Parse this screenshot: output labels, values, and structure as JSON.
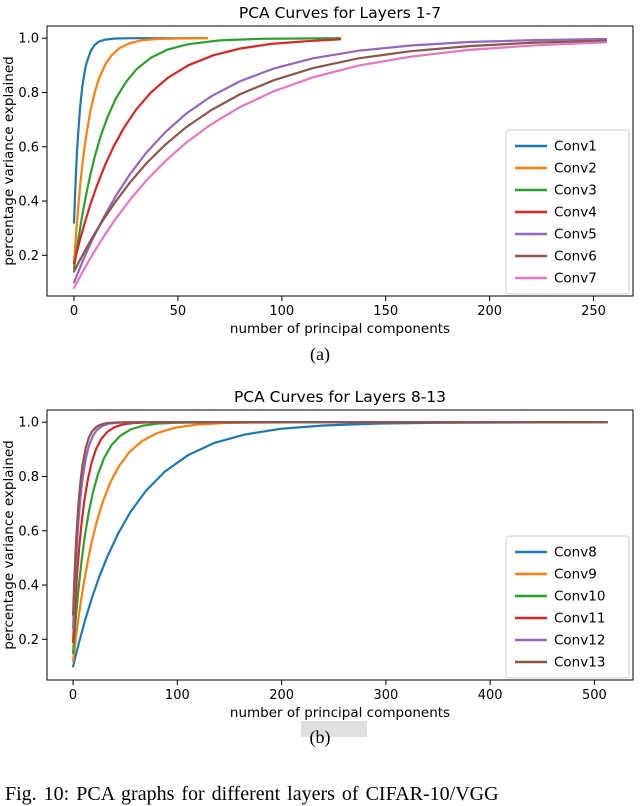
{
  "page": {
    "caption_a": "(a)",
    "caption_b": "(b)",
    "figure_caption": "Fig. 10: PCA graphs for different layers of CIFAR-10/VGG"
  },
  "chart_data": [
    {
      "type": "line",
      "title": "PCA Curves for Layers 1-7",
      "xlabel": "number of principal components",
      "ylabel": "percentage variance explained",
      "xlim": [
        -13,
        269
      ],
      "ylim": [
        0.05,
        1.045
      ],
      "x_ticks": [
        0,
        50,
        100,
        150,
        200,
        250
      ],
      "y_ticks": [
        0.2,
        0.4,
        0.6,
        0.8,
        1.0
      ],
      "grid": false,
      "legend_position": "center right",
      "series": [
        {
          "name": "Conv1",
          "color": "#1f77b4",
          "points": [
            [
              0,
              0.32
            ],
            [
              0.5,
              0.424
            ],
            [
              1,
              0.513
            ],
            [
              1.5,
              0.588
            ],
            [
              2,
              0.651
            ],
            [
              3,
              0.75
            ],
            [
              4,
              0.821
            ],
            [
              5,
              0.872
            ],
            [
              6,
              0.908
            ],
            [
              8,
              0.952
            ],
            [
              10,
              0.976
            ],
            [
              12,
              0.988
            ],
            [
              15,
              0.995
            ],
            [
              20,
              0.999
            ],
            [
              30,
              1.0
            ],
            [
              45,
              1.0
            ],
            [
              64,
              1.0
            ]
          ]
        },
        {
          "name": "Conv2",
          "color": "#ff7f0e",
          "points": [
            [
              0,
              0.17
            ],
            [
              1,
              0.28
            ],
            [
              2,
              0.376
            ],
            [
              3,
              0.459
            ],
            [
              4,
              0.531
            ],
            [
              5,
              0.594
            ],
            [
              6,
              0.648
            ],
            [
              8,
              0.735
            ],
            [
              10,
              0.801
            ],
            [
              12,
              0.851
            ],
            [
              15,
              0.903
            ],
            [
              18,
              0.936
            ],
            [
              22,
              0.964
            ],
            [
              27,
              0.982
            ],
            [
              33,
              0.993
            ],
            [
              40,
              0.997
            ],
            [
              50,
              0.999
            ],
            [
              64,
              1.0
            ]
          ]
        },
        {
          "name": "Conv3",
          "color": "#2ca02c",
          "points": [
            [
              0,
              0.15
            ],
            [
              1,
              0.205
            ],
            [
              2,
              0.256
            ],
            [
              4,
              0.349
            ],
            [
              6,
              0.43
            ],
            [
              8,
              0.501
            ],
            [
              10,
              0.564
            ],
            [
              13,
              0.643
            ],
            [
              16,
              0.707
            ],
            [
              20,
              0.776
            ],
            [
              25,
              0.839
            ],
            [
              30,
              0.885
            ],
            [
              37,
              0.928
            ],
            [
              45,
              0.958
            ],
            [
              55,
              0.978
            ],
            [
              70,
              0.992
            ],
            [
              90,
              0.998
            ],
            [
              110,
              0.999
            ],
            [
              128,
              1.0
            ]
          ]
        },
        {
          "name": "Conv4",
          "color": "#d62728",
          "points": [
            [
              0,
              0.17
            ],
            [
              1,
              0.201
            ],
            [
              3,
              0.26
            ],
            [
              5,
              0.315
            ],
            [
              8,
              0.39
            ],
            [
              11,
              0.456
            ],
            [
              15,
              0.534
            ],
            [
              19,
              0.6
            ],
            [
              24,
              0.67
            ],
            [
              30,
              0.738
            ],
            [
              37,
              0.8
            ],
            [
              45,
              0.853
            ],
            [
              55,
              0.9
            ],
            [
              67,
              0.937
            ],
            [
              80,
              0.962
            ],
            [
              95,
              0.979
            ],
            [
              112,
              0.989
            ],
            [
              128,
              0.996
            ]
          ]
        },
        {
          "name": "Conv5",
          "color": "#9467bd",
          "points": [
            [
              0,
              0.1
            ],
            [
              2,
              0.138
            ],
            [
              5,
              0.193
            ],
            [
              9,
              0.26
            ],
            [
              14,
              0.336
            ],
            [
              20,
              0.417
            ],
            [
              27,
              0.5
            ],
            [
              35,
              0.58
            ],
            [
              44,
              0.654
            ],
            [
              54,
              0.722
            ],
            [
              66,
              0.786
            ],
            [
              80,
              0.842
            ],
            [
              96,
              0.888
            ],
            [
              115,
              0.926
            ],
            [
              137,
              0.954
            ],
            [
              162,
              0.973
            ],
            [
              190,
              0.986
            ],
            [
              222,
              0.993
            ],
            [
              256,
              0.997
            ]
          ]
        },
        {
          "name": "Conv6",
          "color": "#8c564b",
          "points": [
            [
              0,
              0.14
            ],
            [
              2,
              0.17
            ],
            [
              5,
              0.213
            ],
            [
              9,
              0.268
            ],
            [
              14,
              0.33
            ],
            [
              20,
              0.398
            ],
            [
              27,
              0.469
            ],
            [
              35,
              0.54
            ],
            [
              44,
              0.608
            ],
            [
              54,
              0.672
            ],
            [
              66,
              0.735
            ],
            [
              80,
              0.794
            ],
            [
              96,
              0.845
            ],
            [
              115,
              0.89
            ],
            [
              137,
              0.926
            ],
            [
              162,
              0.952
            ],
            [
              190,
              0.971
            ],
            [
              222,
              0.984
            ],
            [
              256,
              0.991
            ]
          ]
        },
        {
          "name": "Conv7",
          "color": "#e377c2",
          "points": [
            [
              0,
              0.08
            ],
            [
              2,
              0.109
            ],
            [
              5,
              0.151
            ],
            [
              9,
              0.204
            ],
            [
              14,
              0.266
            ],
            [
              20,
              0.334
            ],
            [
              27,
              0.405
            ],
            [
              35,
              0.477
            ],
            [
              44,
              0.547
            ],
            [
              54,
              0.615
            ],
            [
              66,
              0.683
            ],
            [
              80,
              0.747
            ],
            [
              96,
              0.804
            ],
            [
              115,
              0.856
            ],
            [
              137,
              0.899
            ],
            [
              162,
              0.932
            ],
            [
              190,
              0.957
            ],
            [
              222,
              0.974
            ],
            [
              256,
              0.985
            ]
          ]
        }
      ]
    },
    {
      "type": "line",
      "title": "PCA Curves for Layers 8-13",
      "xlabel": "number of principal components",
      "ylabel": "percentage variance explained",
      "xlim": [
        -25,
        537
      ],
      "ylim": [
        0.05,
        1.045
      ],
      "x_ticks": [
        0,
        100,
        200,
        300,
        400,
        500
      ],
      "y_ticks": [
        0.2,
        0.4,
        0.6,
        0.8,
        1.0
      ],
      "grid": false,
      "legend_position": "lower right",
      "series": [
        {
          "name": "Conv8",
          "color": "#1f77b4",
          "points": [
            [
              0,
              0.1
            ],
            [
              3,
              0.148
            ],
            [
              7,
              0.207
            ],
            [
              12,
              0.277
            ],
            [
              18,
              0.351
            ],
            [
              25,
              0.429
            ],
            [
              33,
              0.506
            ],
            [
              43,
              0.588
            ],
            [
              55,
              0.669
            ],
            [
              70,
              0.748
            ],
            [
              88,
              0.818
            ],
            [
              110,
              0.878
            ],
            [
              135,
              0.923
            ],
            [
              165,
              0.955
            ],
            [
              200,
              0.976
            ],
            [
              240,
              0.988
            ],
            [
              290,
              0.995
            ],
            [
              350,
              0.998
            ],
            [
              420,
              0.999
            ],
            [
              512,
              1.0
            ]
          ]
        },
        {
          "name": "Conv9",
          "color": "#ff7f0e",
          "points": [
            [
              0,
              0.12
            ],
            [
              2,
              0.185
            ],
            [
              4,
              0.245
            ],
            [
              7,
              0.328
            ],
            [
              10,
              0.401
            ],
            [
              14,
              0.486
            ],
            [
              18,
              0.56
            ],
            [
              23,
              0.637
            ],
            [
              29,
              0.712
            ],
            [
              36,
              0.78
            ],
            [
              44,
              0.838
            ],
            [
              54,
              0.89
            ],
            [
              66,
              0.93
            ],
            [
              80,
              0.959
            ],
            [
              97,
              0.979
            ],
            [
              118,
              0.991
            ],
            [
              145,
              0.997
            ],
            [
              180,
              0.999
            ],
            [
              230,
              1.0
            ],
            [
              512,
              1.0
            ]
          ]
        },
        {
          "name": "Conv10",
          "color": "#2ca02c",
          "points": [
            [
              0,
              0.15
            ],
            [
              1,
              0.202
            ],
            [
              3,
              0.295
            ],
            [
              5,
              0.378
            ],
            [
              8,
              0.484
            ],
            [
              11,
              0.573
            ],
            [
              15,
              0.667
            ],
            [
              19,
              0.741
            ],
            [
              24,
              0.81
            ],
            [
              30,
              0.87
            ],
            [
              37,
              0.916
            ],
            [
              45,
              0.949
            ],
            [
              55,
              0.973
            ],
            [
              67,
              0.987
            ],
            [
              81,
              0.995
            ],
            [
              98,
              0.998
            ],
            [
              120,
              0.999
            ],
            [
              150,
              1.0
            ],
            [
              512,
              1.0
            ]
          ]
        },
        {
          "name": "Conv11",
          "color": "#d62728",
          "points": [
            [
              0,
              0.19
            ],
            [
              1,
              0.264
            ],
            [
              2,
              0.33
            ],
            [
              4,
              0.447
            ],
            [
              6,
              0.543
            ],
            [
              8,
              0.622
            ],
            [
              11,
              0.716
            ],
            [
              14,
              0.786
            ],
            [
              18,
              0.854
            ],
            [
              22,
              0.9
            ],
            [
              27,
              0.938
            ],
            [
              33,
              0.965
            ],
            [
              40,
              0.982
            ],
            [
              48,
              0.992
            ],
            [
              58,
              0.997
            ],
            [
              70,
              0.999
            ],
            [
              85,
              1.0
            ],
            [
              512,
              1.0
            ]
          ]
        },
        {
          "name": "Conv12",
          "color": "#9467bd",
          "points": [
            [
              0,
              0.24
            ],
            [
              1,
              0.341
            ],
            [
              2,
              0.429
            ],
            [
              3,
              0.505
            ],
            [
              5,
              0.628
            ],
            [
              7,
              0.72
            ],
            [
              9,
              0.79
            ],
            [
              12,
              0.863
            ],
            [
              15,
              0.911
            ],
            [
              19,
              0.95
            ],
            [
              23,
              0.972
            ],
            [
              28,
              0.986
            ],
            [
              34,
              0.994
            ],
            [
              42,
              0.998
            ],
            [
              52,
              0.999
            ],
            [
              65,
              1.0
            ],
            [
              512,
              1.0
            ]
          ]
        },
        {
          "name": "Conv13",
          "color": "#8c564b",
          "points": [
            [
              0,
              0.29
            ],
            [
              1,
              0.399
            ],
            [
              2,
              0.491
            ],
            [
              3,
              0.569
            ],
            [
              5,
              0.691
            ],
            [
              7,
              0.779
            ],
            [
              9,
              0.842
            ],
            [
              12,
              0.904
            ],
            [
              15,
              0.942
            ],
            [
              18,
              0.965
            ],
            [
              22,
              0.982
            ],
            [
              27,
              0.992
            ],
            [
              33,
              0.997
            ],
            [
              41,
              0.999
            ],
            [
              52,
              1.0
            ],
            [
              512,
              1.0
            ]
          ]
        }
      ]
    }
  ]
}
